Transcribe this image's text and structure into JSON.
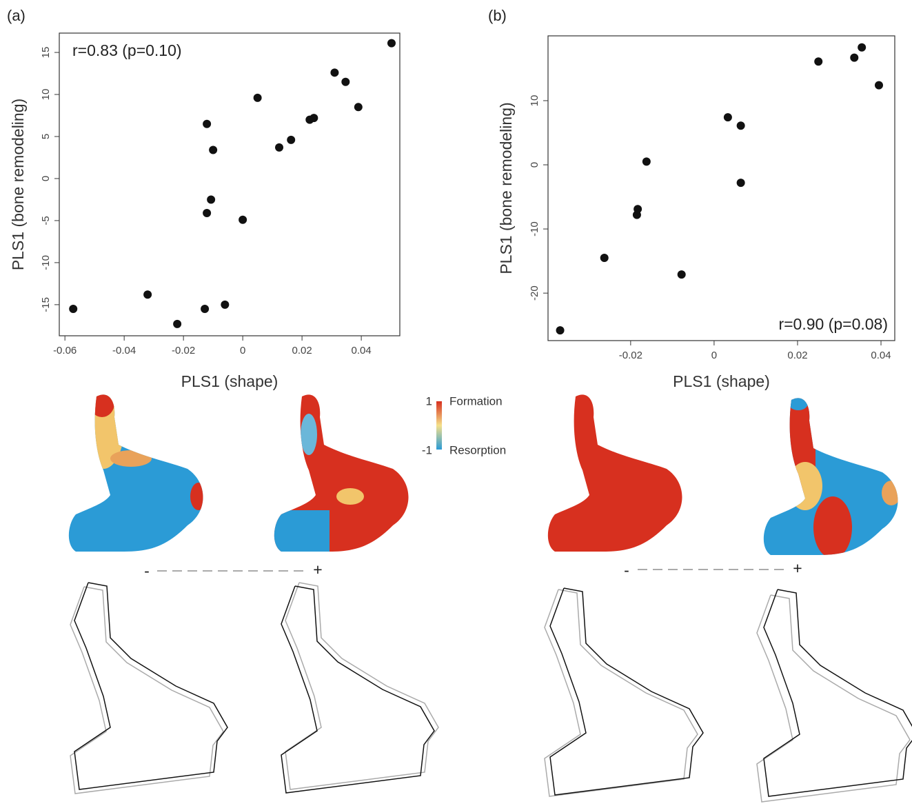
{
  "chart_data": [
    {
      "type": "scatter",
      "panel_label": "(a)",
      "annotation": "r=0.83 (p=0.10)",
      "x_label": "PLS1 (shape)",
      "y_label": "PLS1 (bone remodeling)",
      "color": "#111111",
      "x": [
        0.0502,
        0.031,
        0.0347,
        0.039,
        0.005,
        -0.0121,
        -0.01,
        0.0123,
        0.0163,
        0.0226,
        0.024,
        -0.0107,
        -0.0121,
        0.0,
        -0.006,
        -0.0128,
        -0.0221,
        -0.0321,
        -0.0572
      ],
      "values": [
        16.1,
        12.6,
        11.5,
        8.5,
        9.6,
        6.5,
        3.4,
        3.7,
        4.6,
        7.0,
        7.2,
        -2.5,
        -4.1,
        -4.9,
        -15.0,
        -15.5,
        -17.3,
        -13.8,
        -15.5
      ],
      "xlim": [
        -0.0619,
        0.053
      ],
      "ylim": [
        -18.7,
        17.3
      ],
      "xticks": [
        -0.06,
        -0.04,
        -0.02,
        0,
        0.02,
        0.04
      ],
      "yticks": [
        -15,
        -10,
        -5,
        0,
        5,
        10,
        15
      ]
    },
    {
      "type": "scatter",
      "panel_label": "(b)",
      "annotation": "r=0.90 (p=0.08)",
      "x_label": "PLS1 (shape)",
      "y_label": "PLS1 (bone remodeling)",
      "color": "#111111",
      "x": [
        -0.0369,
        -0.0263,
        -0.0185,
        -0.0183,
        -0.0162,
        -0.0078,
        0.0033,
        0.0064,
        0.0064,
        0.025,
        0.0336,
        0.0354,
        0.0395
      ],
      "values": [
        -25.8,
        -14.5,
        -7.8,
        -6.9,
        0.5,
        -17.1,
        7.4,
        6.1,
        -2.8,
        16.1,
        16.7,
        18.3,
        12.4
      ],
      "xlim": [
        -0.0398,
        0.0433
      ],
      "ylim": [
        -27.4,
        20.1
      ],
      "xticks": [
        -0.02,
        0,
        0.02,
        0.04
      ],
      "yticks": [
        -20,
        -10,
        0,
        10
      ]
    }
  ],
  "colorbar": {
    "max": "1",
    "max_label": "Formation",
    "min": "-1",
    "min_label": "Resorption"
  },
  "arrows": [
    {
      "minus": "-",
      "plus": "+"
    },
    {
      "minus": "-",
      "plus": "+"
    }
  ]
}
